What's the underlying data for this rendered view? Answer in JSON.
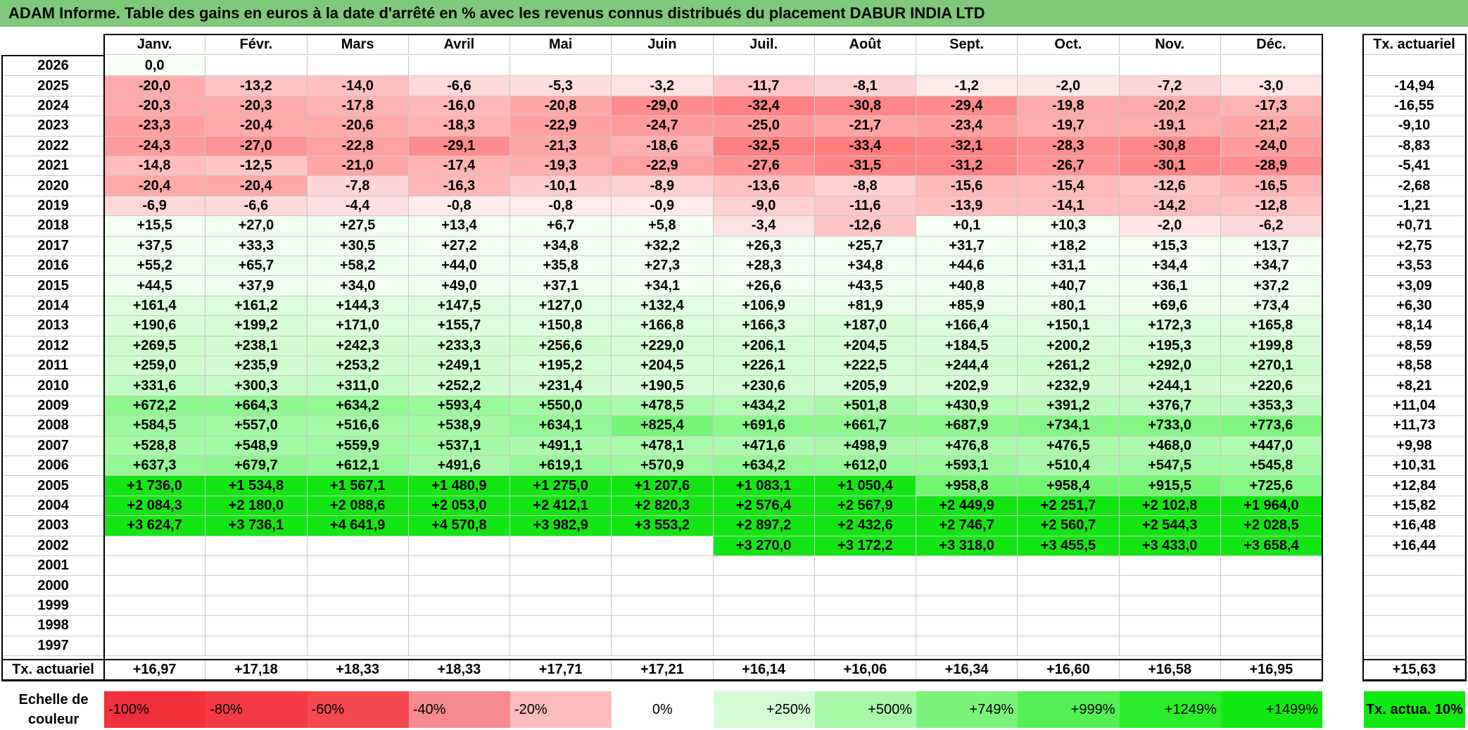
{
  "title": "ADAM Informe. Table des gains en euros à la date d'arrêté en % avec les revenus connus distribués du placement DABUR INDIA LTD",
  "months": [
    "Janv.",
    "Févr.",
    "Mars",
    "Avril",
    "Mai",
    "Juin",
    "Juil.",
    "Août",
    "Sept.",
    "Oct.",
    "Nov.",
    "Déc."
  ],
  "annual_header": "Tx. actuariel",
  "rows": [
    {
      "year": "2026",
      "values": [
        "0,0",
        "",
        "",
        "",
        "",
        "",
        "",
        "",
        "",
        "",
        "",
        ""
      ],
      "annual": ""
    },
    {
      "year": "2025",
      "values": [
        "-20,0",
        "-13,2",
        "-14,0",
        "-6,6",
        "-5,3",
        "-3,2",
        "-11,7",
        "-8,1",
        "-1,2",
        "-2,0",
        "-7,2",
        "-3,0"
      ],
      "annual": "-14,94"
    },
    {
      "year": "2024",
      "values": [
        "-20,3",
        "-20,3",
        "-17,8",
        "-16,0",
        "-20,8",
        "-29,0",
        "-32,4",
        "-30,8",
        "-29,4",
        "-19,8",
        "-20,2",
        "-17,3"
      ],
      "annual": "-16,55"
    },
    {
      "year": "2023",
      "values": [
        "-23,3",
        "-20,4",
        "-20,6",
        "-18,3",
        "-22,9",
        "-24,7",
        "-25,0",
        "-21,7",
        "-23,4",
        "-19,7",
        "-19,1",
        "-21,2"
      ],
      "annual": "-9,10"
    },
    {
      "year": "2022",
      "values": [
        "-24,3",
        "-27,0",
        "-22,8",
        "-29,1",
        "-21,3",
        "-18,6",
        "-32,5",
        "-33,4",
        "-32,1",
        "-28,3",
        "-30,8",
        "-24,0"
      ],
      "annual": "-8,83"
    },
    {
      "year": "2021",
      "values": [
        "-14,8",
        "-12,5",
        "-21,0",
        "-17,4",
        "-19,3",
        "-22,9",
        "-27,6",
        "-31,5",
        "-31,2",
        "-26,7",
        "-30,1",
        "-28,9"
      ],
      "annual": "-5,41"
    },
    {
      "year": "2020",
      "values": [
        "-20,4",
        "-20,4",
        "-7,8",
        "-16,3",
        "-10,1",
        "-8,9",
        "-13,6",
        "-8,8",
        "-15,6",
        "-15,4",
        "-12,6",
        "-16,5"
      ],
      "annual": "-2,68"
    },
    {
      "year": "2019",
      "values": [
        "-6,9",
        "-6,6",
        "-4,4",
        "-0,8",
        "-0,8",
        "-0,9",
        "-9,0",
        "-11,6",
        "-13,9",
        "-14,1",
        "-14,2",
        "-12,8"
      ],
      "annual": "-1,21"
    },
    {
      "year": "2018",
      "values": [
        "+15,5",
        "+27,0",
        "+27,5",
        "+13,4",
        "+6,7",
        "+5,8",
        "-3,4",
        "-12,6",
        "+0,1",
        "+10,3",
        "-2,0",
        "-6,2"
      ],
      "annual": "+0,71"
    },
    {
      "year": "2017",
      "values": [
        "+37,5",
        "+33,3",
        "+30,5",
        "+27,2",
        "+34,8",
        "+32,2",
        "+26,3",
        "+25,7",
        "+31,7",
        "+18,2",
        "+15,3",
        "+13,7"
      ],
      "annual": "+2,75"
    },
    {
      "year": "2016",
      "values": [
        "+55,2",
        "+65,7",
        "+58,2",
        "+44,0",
        "+35,8",
        "+27,3",
        "+28,3",
        "+34,8",
        "+44,6",
        "+31,1",
        "+34,4",
        "+34,7"
      ],
      "annual": "+3,53"
    },
    {
      "year": "2015",
      "values": [
        "+44,5",
        "+37,9",
        "+34,0",
        "+49,0",
        "+37,1",
        "+34,1",
        "+26,6",
        "+43,5",
        "+40,8",
        "+40,7",
        "+36,1",
        "+37,2"
      ],
      "annual": "+3,09"
    },
    {
      "year": "2014",
      "values": [
        "+161,4",
        "+161,2",
        "+144,3",
        "+147,5",
        "+127,0",
        "+132,4",
        "+106,9",
        "+81,9",
        "+85,9",
        "+80,1",
        "+69,6",
        "+73,4"
      ],
      "annual": "+6,30"
    },
    {
      "year": "2013",
      "values": [
        "+190,6",
        "+199,2",
        "+171,0",
        "+155,7",
        "+150,8",
        "+166,8",
        "+166,3",
        "+187,0",
        "+166,4",
        "+150,1",
        "+172,3",
        "+165,8"
      ],
      "annual": "+8,14"
    },
    {
      "year": "2012",
      "values": [
        "+269,5",
        "+238,1",
        "+242,3",
        "+233,3",
        "+256,6",
        "+229,0",
        "+206,1",
        "+204,5",
        "+184,5",
        "+200,2",
        "+195,3",
        "+199,8"
      ],
      "annual": "+8,59"
    },
    {
      "year": "2011",
      "values": [
        "+259,0",
        "+235,9",
        "+253,2",
        "+249,1",
        "+195,2",
        "+204,5",
        "+226,1",
        "+222,5",
        "+244,4",
        "+261,2",
        "+292,0",
        "+270,1"
      ],
      "annual": "+8,58"
    },
    {
      "year": "2010",
      "values": [
        "+331,6",
        "+300,3",
        "+311,0",
        "+252,2",
        "+231,4",
        "+190,5",
        "+230,6",
        "+205,9",
        "+202,9",
        "+232,9",
        "+244,1",
        "+220,6"
      ],
      "annual": "+8,21"
    },
    {
      "year": "2009",
      "values": [
        "+672,2",
        "+664,3",
        "+634,2",
        "+593,4",
        "+550,0",
        "+478,5",
        "+434,2",
        "+501,8",
        "+430,9",
        "+391,2",
        "+376,7",
        "+353,3"
      ],
      "annual": "+11,04"
    },
    {
      "year": "2008",
      "values": [
        "+584,5",
        "+557,0",
        "+516,6",
        "+538,9",
        "+634,1",
        "+825,4",
        "+691,6",
        "+661,7",
        "+687,9",
        "+734,1",
        "+733,0",
        "+773,6"
      ],
      "annual": "+11,73"
    },
    {
      "year": "2007",
      "values": [
        "+528,8",
        "+548,9",
        "+559,9",
        "+537,1",
        "+491,1",
        "+478,1",
        "+471,6",
        "+498,9",
        "+476,8",
        "+476,5",
        "+468,0",
        "+447,0"
      ],
      "annual": "+9,98"
    },
    {
      "year": "2006",
      "values": [
        "+637,3",
        "+679,7",
        "+612,1",
        "+491,6",
        "+619,1",
        "+570,9",
        "+634,2",
        "+612,0",
        "+593,1",
        "+510,4",
        "+547,5",
        "+545,8"
      ],
      "annual": "+10,31"
    },
    {
      "year": "2005",
      "values": [
        "+1 736,0",
        "+1 534,8",
        "+1 567,1",
        "+1 480,9",
        "+1 275,0",
        "+1 207,6",
        "+1 083,1",
        "+1 050,4",
        "+958,8",
        "+958,4",
        "+915,5",
        "+725,6"
      ],
      "annual": "+12,84"
    },
    {
      "year": "2004",
      "values": [
        "+2 084,3",
        "+2 180,0",
        "+2 088,6",
        "+2 053,0",
        "+2 412,1",
        "+2 820,3",
        "+2 576,4",
        "+2 567,9",
        "+2 449,9",
        "+2 251,7",
        "+2 102,8",
        "+1 964,0"
      ],
      "annual": "+15,82"
    },
    {
      "year": "2003",
      "values": [
        "+3 624,7",
        "+3 736,1",
        "+4 641,9",
        "+4 570,8",
        "+3 982,9",
        "+3 553,2",
        "+2 897,2",
        "+2 432,6",
        "+2 746,7",
        "+2 560,7",
        "+2 544,3",
        "+2 028,5"
      ],
      "annual": "+16,48"
    },
    {
      "year": "2002",
      "values": [
        "",
        "",
        "",
        "",
        "",
        "",
        "+3 270,0",
        "+3 172,2",
        "+3 318,0",
        "+3 455,5",
        "+3 433,0",
        "+3 658,4"
      ],
      "annual": "+16,44"
    },
    {
      "year": "2001",
      "values": [
        "",
        "",
        "",
        "",
        "",
        "",
        "",
        "",
        "",
        "",
        "",
        ""
      ],
      "annual": ""
    },
    {
      "year": "2000",
      "values": [
        "",
        "",
        "",
        "",
        "",
        "",
        "",
        "",
        "",
        "",
        "",
        ""
      ],
      "annual": ""
    },
    {
      "year": "1999",
      "values": [
        "",
        "",
        "",
        "",
        "",
        "",
        "",
        "",
        "",
        "",
        "",
        ""
      ],
      "annual": ""
    },
    {
      "year": "1998",
      "values": [
        "",
        "",
        "",
        "",
        "",
        "",
        "",
        "",
        "",
        "",
        "",
        ""
      ],
      "annual": ""
    },
    {
      "year": "1997",
      "values": [
        "",
        "",
        "",
        "",
        "",
        "",
        "",
        "",
        "",
        "",
        "",
        ""
      ],
      "annual": ""
    }
  ],
  "footer": {
    "label": "Tx. actuariel",
    "values": [
      "+16,97",
      "+17,18",
      "+18,33",
      "+18,33",
      "+17,71",
      "+17,21",
      "+16,14",
      "+16,06",
      "+16,34",
      "+16,60",
      "+16,58",
      "+16,95"
    ],
    "annual": "+15,63"
  },
  "legend": {
    "label": "Echelle de couleur",
    "items": [
      {
        "text": "-100%",
        "color": "#f0303a"
      },
      {
        "text": "-80%",
        "color": "#f33a44"
      },
      {
        "text": "-60%",
        "color": "#f5484f"
      },
      {
        "text": "-40%",
        "color": "#f78a8c"
      },
      {
        "text": "-20%",
        "color": "#fbbcbd"
      },
      {
        "text": "0%",
        "color": "#ffffff"
      },
      {
        "text": "+250%",
        "color": "#d4fcd4"
      },
      {
        "text": "+500%",
        "color": "#a8f8a8"
      },
      {
        "text": "+749%",
        "color": "#7cf47c"
      },
      {
        "text": "+999%",
        "color": "#54f054"
      },
      {
        "text": "+1249%",
        "color": "#2aec2a"
      },
      {
        "text": "+1499%",
        "color": "#12e812"
      }
    ],
    "annual": "Tx. actua. 10%",
    "annual_color": "#12e812"
  }
}
